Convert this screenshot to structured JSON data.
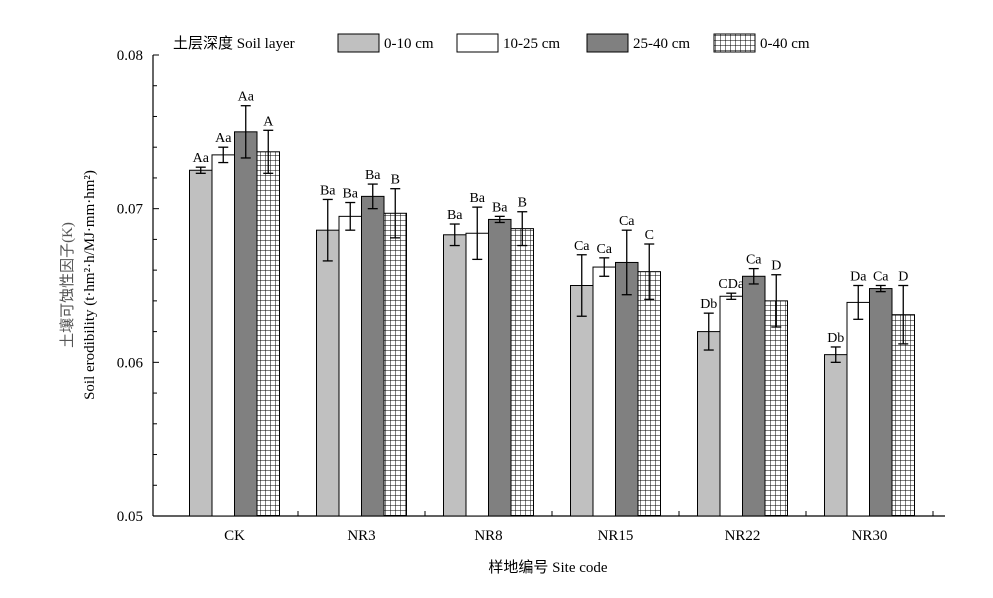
{
  "chart_data": {
    "type": "bar",
    "xlabel": "样地编号 Site code",
    "ylabel_cn": "土壤可蚀性因子(K)",
    "ylabel_en": "Soil erodibility (t·hm²·h/MJ·mm·hm²)",
    "ylim": [
      0.05,
      0.08
    ],
    "yticks": [
      "0.05",
      "0.06",
      "0.07",
      "0.08"
    ],
    "ytick_values": [
      0.05,
      0.06,
      0.07,
      0.08
    ],
    "legend_title": "土层深度 Soil layer",
    "legend_position": "top",
    "grid": false,
    "categories": [
      "CK",
      "NR3",
      "NR8",
      "NR15",
      "NR22",
      "NR30"
    ],
    "series": [
      {
        "name": "0-10 cm",
        "fill": "#c0c0c0",
        "pattern": "solid",
        "values": [
          0.0725,
          0.0686,
          0.0683,
          0.065,
          0.062,
          0.0605
        ],
        "errors": [
          0.0002,
          0.002,
          0.0007,
          0.002,
          0.0012,
          0.0005
        ],
        "labels": [
          "Aa",
          "Ba",
          "Ba",
          "Ca",
          "Db",
          "Db"
        ]
      },
      {
        "name": "10-25 cm",
        "fill": "#ffffff",
        "pattern": "solid",
        "values": [
          0.0735,
          0.0695,
          0.0684,
          0.0662,
          0.0643,
          0.0639
        ],
        "errors": [
          0.0005,
          0.0009,
          0.0017,
          0.0006,
          0.0002,
          0.0011
        ],
        "labels": [
          "Aa",
          "Ba",
          "Ba",
          "Ca",
          "CDa",
          "Da"
        ]
      },
      {
        "name": "25-40 cm",
        "fill": "#808080",
        "pattern": "solid",
        "values": [
          0.075,
          0.0708,
          0.0693,
          0.0665,
          0.0656,
          0.0648
        ],
        "errors": [
          0.0017,
          0.0008,
          0.0002,
          0.0021,
          0.0005,
          0.0002
        ],
        "labels": [
          "Aa",
          "Ba",
          "Ba",
          "Ca",
          "Ca",
          "Ca"
        ]
      },
      {
        "name": "0-40 cm",
        "fill": "#ffffff",
        "pattern": "grid",
        "values": [
          0.0737,
          0.0697,
          0.0687,
          0.0659,
          0.064,
          0.0631
        ],
        "errors": [
          0.0014,
          0.0016,
          0.0011,
          0.0018,
          0.0017,
          0.0019
        ],
        "labels": [
          "A",
          "B",
          "B",
          "C",
          "D",
          "D"
        ]
      }
    ]
  }
}
